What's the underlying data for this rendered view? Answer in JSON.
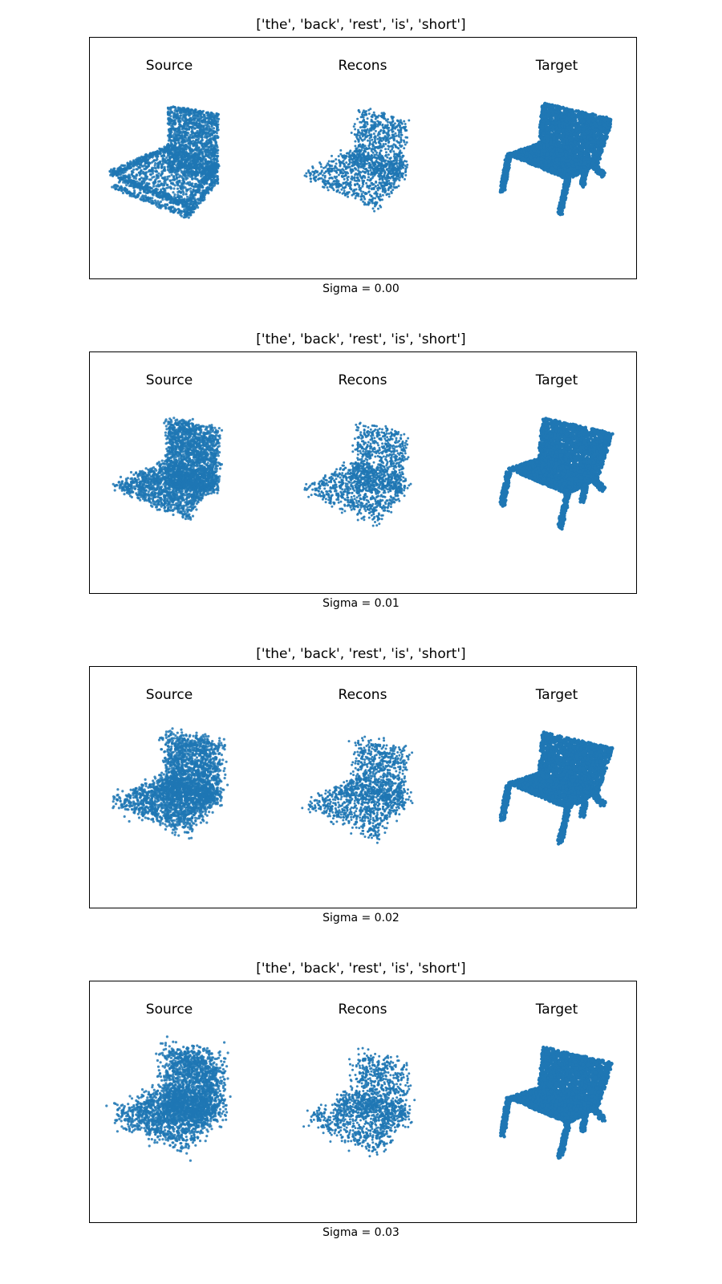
{
  "accent_color": "#1f77b4",
  "panels": [
    {
      "title": "['the', 'back', 'rest', 'is', 'short']",
      "columns": [
        "Source",
        "Recons",
        "Target"
      ],
      "sigma_label": "Sigma = 0.00",
      "sigma": 0.0
    },
    {
      "title": "['the', 'back', 'rest', 'is', 'short']",
      "columns": [
        "Source",
        "Recons",
        "Target"
      ],
      "sigma_label": "Sigma = 0.01",
      "sigma": 0.01
    },
    {
      "title": "['the', 'back', 'rest', 'is', 'short']",
      "columns": [
        "Source",
        "Recons",
        "Target"
      ],
      "sigma_label": "Sigma = 0.02",
      "sigma": 0.02
    },
    {
      "title": "['the', 'back', 'rest', 'is', 'short']",
      "columns": [
        "Source",
        "Recons",
        "Target"
      ],
      "sigma_label": "Sigma = 0.03",
      "sigma": 0.03
    }
  ]
}
